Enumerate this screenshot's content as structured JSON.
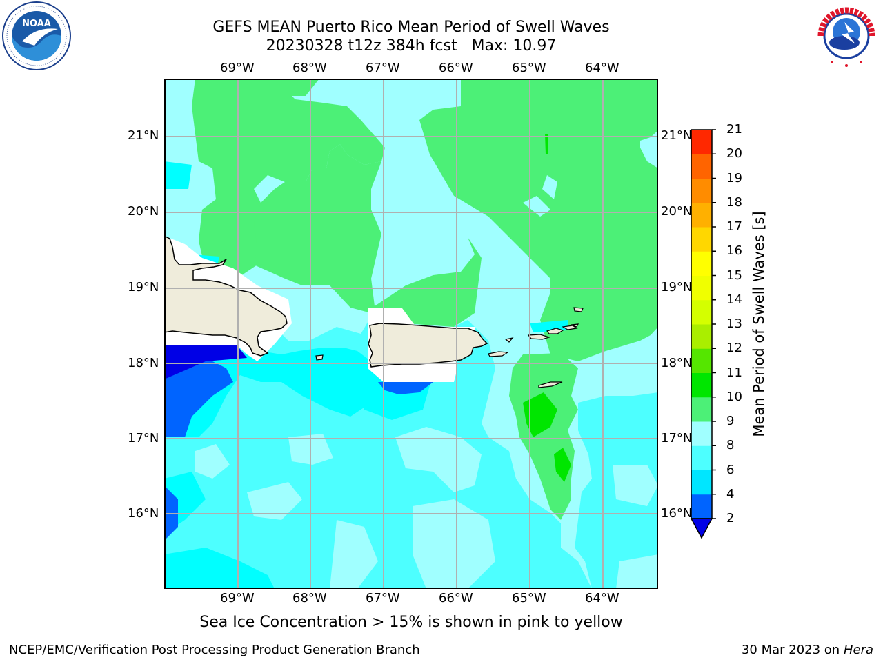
{
  "header": {
    "title_line1": "GEFS MEAN Puerto Rico Mean Period of Swell Waves",
    "title_line2": "20230328 t12z 384h fcst   Max: 10.97"
  },
  "logos": {
    "left": {
      "icon": "noaa-logo-icon",
      "text": "NOAA"
    },
    "right": {
      "icon": "national-weather-service-logo-icon",
      "text": "NATIONAL WEATHER SERVICE"
    }
  },
  "map": {
    "lon_labels": [
      "69°W",
      "68°W",
      "67°W",
      "66°W",
      "65°W",
      "64°W"
    ],
    "lat_labels": [
      "21°N",
      "20°N",
      "19°N",
      "18°N",
      "17°N",
      "16°N"
    ],
    "lon_range": [
      -70,
      -63.25
    ],
    "lat_range": [
      15.0,
      21.75
    ],
    "land_color": "#efecdb",
    "grid_color": "#b0b0b0"
  },
  "colorbar": {
    "title": "Mean Period of Swell Waves [s]",
    "ticks": [
      "2",
      "4",
      "6",
      "8",
      "9",
      "10",
      "11",
      "12",
      "13",
      "14",
      "15",
      "16",
      "17",
      "18",
      "19",
      "20",
      "21"
    ],
    "colors": [
      "#0000e6",
      "#0064ff",
      "#00e6ff",
      "#4dffff",
      "#a0ffff",
      "#4cf077",
      "#00e600",
      "#55e600",
      "#aaee00",
      "#d4ff00",
      "#f0ff00",
      "#ffff00",
      "#ffd700",
      "#ffb000",
      "#ff8c00",
      "#ff6400",
      "#ff2800",
      "#ff0000"
    ],
    "extend_under_color": "#0000e6"
  },
  "footer": {
    "subtitle": "Sea Ice Concentration > 15% is shown in pink to yellow",
    "left": "NCEP/EMC/Verification Post Processing Product Generation Branch",
    "right_prefix": "30 Mar 2023 on",
    "right_machine": "Hera"
  }
}
